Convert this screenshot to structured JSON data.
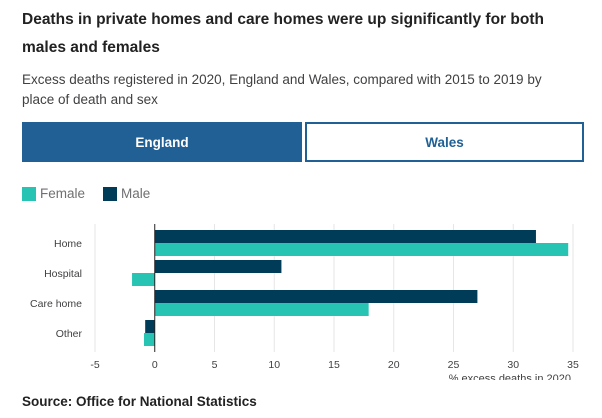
{
  "header": {
    "title": "Deaths in private homes and care homes were up significantly for both males and females",
    "subtitle": "Excess deaths registered in 2020, England and Wales, compared with 2015 to 2019 by place of death and sex"
  },
  "tabs": [
    {
      "label": "England",
      "active": true
    },
    {
      "label": "Wales",
      "active": false
    }
  ],
  "legend": [
    {
      "label": "Female",
      "color": "#27c4b3"
    },
    {
      "label": "Male",
      "color": "#003c57"
    }
  ],
  "source": "Source: Office for National Statistics",
  "chart_data": {
    "type": "bar",
    "orientation": "horizontal",
    "categories": [
      "Home",
      "Hospital",
      "Care home",
      "Other"
    ],
    "series": [
      {
        "name": "Male",
        "color": "#003c57",
        "values": [
          31.9,
          10.6,
          27.0,
          -0.8
        ]
      },
      {
        "name": "Female",
        "color": "#27c4b3",
        "values": [
          34.6,
          -1.9,
          17.9,
          -0.9
        ]
      }
    ],
    "xlabel": "% excess deaths in 2020",
    "xlim": [
      -5,
      35
    ],
    "xticks": [
      -5,
      0,
      5,
      10,
      15,
      20,
      25,
      30,
      35
    ],
    "grid": true,
    "legend_position": "top-left"
  }
}
